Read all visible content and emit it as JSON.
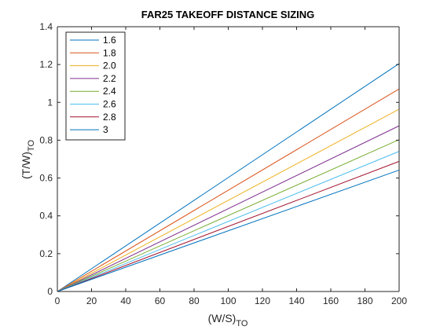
{
  "chart_data": {
    "type": "line",
    "title": "FAR25 TAKEOFF DISTANCE SIZING",
    "xlabel": {
      "main": "(W/S)",
      "sub": "TO"
    },
    "ylabel": {
      "main": "(T/W)",
      "sub": "TO"
    },
    "xlim": [
      0,
      200
    ],
    "ylim": [
      0,
      1.4
    ],
    "xticks": [
      0,
      20,
      40,
      60,
      80,
      100,
      120,
      140,
      160,
      180,
      200
    ],
    "xtick_labels": [
      "0",
      "20",
      "40",
      "60",
      "80",
      "100",
      "120",
      "140",
      "160",
      "180",
      "200"
    ],
    "yticks": [
      0,
      0.2,
      0.4,
      0.6,
      0.8,
      1,
      1.2,
      1.4
    ],
    "ytick_labels": [
      "0",
      "0.2",
      "0.4",
      "0.6",
      "0.8",
      "1",
      "1.2",
      "1.4"
    ],
    "grid": false,
    "legend_position": "top-left",
    "x": [
      0,
      200
    ],
    "series": [
      {
        "name": "1.6",
        "color": "#0072BD",
        "values": [
          0,
          1.205
        ]
      },
      {
        "name": "1.8",
        "color": "#D95319",
        "values": [
          0,
          1.071
        ]
      },
      {
        "name": "2.0",
        "color": "#EDB120",
        "values": [
          0,
          0.964
        ]
      },
      {
        "name": "2.2",
        "color": "#7E2F8E",
        "values": [
          0,
          0.876
        ]
      },
      {
        "name": "2.4",
        "color": "#77AC30",
        "values": [
          0,
          0.803
        ]
      },
      {
        "name": "2.6",
        "color": "#4DBEEE",
        "values": [
          0,
          0.741
        ]
      },
      {
        "name": "2.8",
        "color": "#A2142F",
        "values": [
          0,
          0.688
        ]
      },
      {
        "name": "3",
        "color": "#0072BD",
        "values": [
          0,
          0.642
        ]
      }
    ]
  }
}
